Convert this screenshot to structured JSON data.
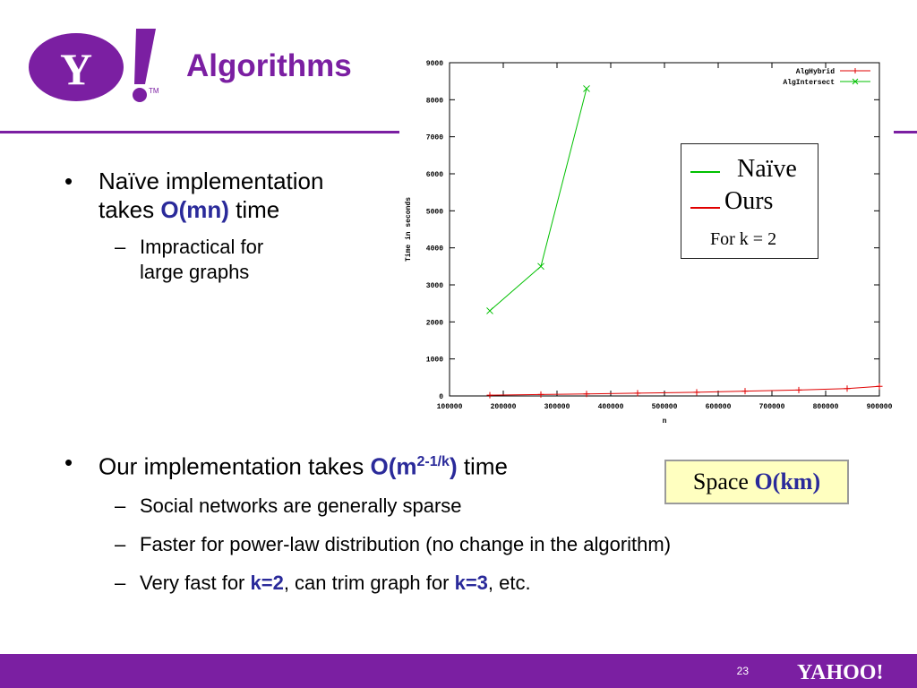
{
  "slide": {
    "title": "Algorithms",
    "page_number": "23",
    "logo_text": "Y!",
    "footer_logo_text": "YAHOO!",
    "accent_color": "#7B1FA2",
    "emphasis_color": "#2A2A9A"
  },
  "bullets_top": {
    "b1_line1": "Naïve implementation",
    "b1_line2_prefix": "takes ",
    "b1_line2_em": "O(mn)",
    "b1_line2_suffix": " time",
    "sub1_line1": "Impractical for",
    "sub1_line2": "large graphs"
  },
  "bullets_bottom": {
    "b2_prefix": "Our implementation takes ",
    "b2_em": "O(m",
    "b2_sup": "2-1/k",
    "b2_em_close": ")",
    "b2_suffix": " time",
    "sub2": "Social networks are generally sparse",
    "sub3": "Faster for power-law distribution (no change in the algorithm)",
    "sub4_prefix": "Very fast for ",
    "sub4_em1": "k=2",
    "sub4_mid": ", can trim graph for ",
    "sub4_em2": "k=3",
    "sub4_suffix": ", etc."
  },
  "overlay_legend": {
    "naive_label": "Naïve",
    "ours_label": "Ours",
    "note": "For k = 2"
  },
  "space_box": {
    "prefix": "Space ",
    "em": "O(km)"
  },
  "chart_data": {
    "type": "line",
    "title": "",
    "xlabel": "n",
    "ylabel": "Time in seconds",
    "xlim": [
      100000,
      900000
    ],
    "ylim": [
      0,
      9000
    ],
    "xticks": [
      "100000",
      "200000",
      "300000",
      "400000",
      "500000",
      "600000",
      "700000",
      "800000",
      "900000"
    ],
    "yticks": [
      "0",
      "1000",
      "2000",
      "3000",
      "4000",
      "5000",
      "6000",
      "7000",
      "8000",
      "9000"
    ],
    "legend_position": "top-right",
    "grid": false,
    "series": [
      {
        "name": "AlgHybrid",
        "color": "#E00000",
        "marker": "+",
        "x": [
          175000,
          270000,
          355000,
          450000,
          560000,
          650000,
          750000,
          840000,
          900000
        ],
        "y": [
          20,
          40,
          55,
          75,
          100,
          130,
          160,
          200,
          260
        ]
      },
      {
        "name": "AlgIntersect",
        "color": "#00C000",
        "marker": "x",
        "x": [
          175000,
          270000,
          355000
        ],
        "y": [
          2300,
          3500,
          8300
        ]
      }
    ]
  }
}
